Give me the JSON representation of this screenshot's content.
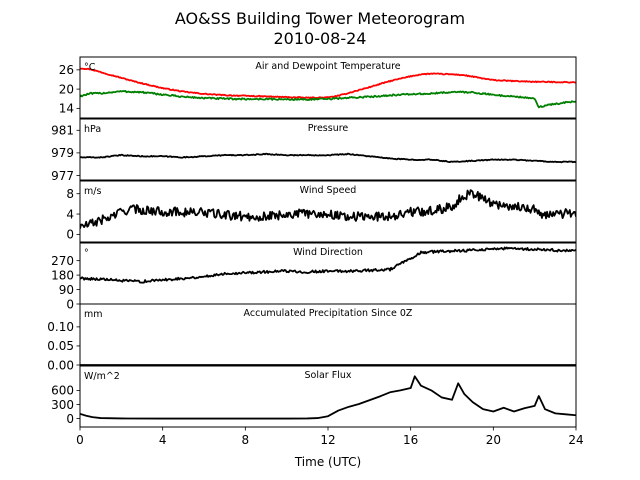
{
  "title_line1": "AO&SS Building Tower Meteorogram",
  "title_line2": "2010-08-24",
  "xlabel": "Time (UTC)",
  "colors": {
    "temperature": "#ff0000",
    "dewpoint": "#008000",
    "default": "#000000"
  },
  "chart_data": {
    "type": "line",
    "x_range": [
      0,
      24
    ],
    "x_ticks": [
      0,
      4,
      8,
      12,
      16,
      20,
      24
    ],
    "x_tick_labels": [
      "0",
      "4",
      "8",
      "12",
      "16",
      "20",
      "24"
    ],
    "panels": [
      {
        "title": "Air and Dewpoint Temperature",
        "unit": "°C",
        "ylim": [
          11,
          30
        ],
        "yticks": [
          14,
          20,
          26
        ],
        "series": [
          {
            "color_key": "temperature",
            "x": [
              0,
              0.5,
              1,
              1.5,
              2,
              2.5,
              3,
              4,
              5,
              6,
              7,
              8,
              9,
              10,
              11,
              12,
              12.5,
              13,
              14,
              15,
              16,
              16.5,
              17,
              17.5,
              18,
              18.5,
              19,
              19.5,
              20,
              21,
              22,
              23,
              24
            ],
            "y": [
              26.5,
              26.2,
              25.3,
              24.4,
              23.5,
              22.6,
              21.8,
              20.3,
              19.2,
              18.5,
              18.1,
              17.9,
              17.7,
              17.5,
              17.3,
              17.4,
              17.9,
              18.8,
              20.6,
              22.5,
              24.0,
              24.6,
              24.8,
              24.7,
              24.6,
              24.4,
              23.9,
              23.3,
              22.8,
              22.5,
              22.3,
              22.2,
              22.1
            ]
          },
          {
            "color_key": "dewpoint",
            "x": [
              0,
              0.5,
              1,
              1.5,
              2,
              3,
              4,
              5,
              6,
              7,
              8,
              9,
              10,
              11,
              12,
              13,
              14,
              15,
              16,
              17,
              18,
              19,
              20,
              21,
              21.5,
              22,
              22.2,
              22.5,
              23,
              24
            ],
            "y": [
              17.8,
              18.6,
              18.7,
              19.0,
              19.3,
              19.0,
              18.3,
              17.6,
              17.2,
              17.0,
              16.9,
              16.9,
              16.8,
              16.8,
              16.9,
              17.3,
              17.6,
              18.1,
              18.4,
              18.6,
              19.1,
              19.0,
              18.2,
              17.7,
              17.4,
              16.9,
              14.4,
              14.9,
              15.4,
              16.2
            ]
          }
        ]
      },
      {
        "title": "Pressure",
        "unit": "hPa",
        "ylim": [
          976.6,
          982.0
        ],
        "yticks": [
          977,
          979,
          981
        ],
        "series": [
          {
            "color_key": "default",
            "x": [
              0,
              1,
              2,
              3,
              4,
              5,
              6,
              7,
              8,
              9,
              10,
              11,
              12,
              13,
              14,
              15,
              16,
              17,
              18,
              19,
              20,
              21,
              22,
              23,
              24
            ],
            "y": [
              978.6,
              978.6,
              978.8,
              978.7,
              978.7,
              978.6,
              978.7,
              978.8,
              978.8,
              978.9,
              978.8,
              978.8,
              978.8,
              978.9,
              978.7,
              978.5,
              978.4,
              978.4,
              978.2,
              978.3,
              978.4,
              978.4,
              978.3,
              978.2,
              978.2
            ]
          }
        ]
      },
      {
        "title": "Wind Speed",
        "unit": "m/s",
        "ylim": [
          -1.5,
          10.5
        ],
        "yticks": [
          0,
          4,
          8
        ],
        "series": [
          {
            "color_key": "default",
            "x": [
              0,
              0.5,
              1,
              1.5,
              2,
              2.5,
              3,
              4,
              5,
              6,
              7,
              8,
              9,
              10,
              11,
              12,
              13,
              14,
              15,
              16,
              17,
              18,
              18.5,
              19,
              19.5,
              20,
              21,
              22,
              22.5,
              23,
              24
            ],
            "y": [
              1.5,
              2.0,
              2.8,
              3.4,
              4.5,
              5.0,
              4.8,
              4.5,
              4.4,
              4.3,
              3.8,
              3.5,
              3.5,
              4.0,
              4.1,
              4.0,
              3.5,
              3.5,
              3.6,
              4.4,
              4.6,
              5.5,
              7.5,
              8.2,
              7.0,
              6.0,
              5.5,
              5.0,
              3.6,
              4.0,
              4.2
            ]
          }
        ]
      },
      {
        "title": "Wind Direction",
        "unit": "°",
        "ylim": [
          0,
          380
        ],
        "yticks": [
          0,
          90,
          180,
          270
        ],
        "series": [
          {
            "color_key": "default",
            "x": [
              0,
              1,
              2,
              3,
              4,
              5,
              6,
              7,
              8,
              9,
              10,
              11,
              12,
              13,
              14,
              15,
              15.5,
              16,
              16.5,
              17,
              18,
              19,
              20,
              21,
              22,
              23,
              24
            ],
            "y": [
              160,
              155,
              145,
              140,
              150,
              160,
              170,
              190,
              195,
              200,
              205,
              200,
              205,
              205,
              210,
              215,
              250,
              280,
              320,
              325,
              330,
              335,
              345,
              345,
              340,
              335,
              330
            ]
          }
        ]
      },
      {
        "title": "Accumulated Precipitation Since 0Z",
        "unit": "mm",
        "ylim": [
          0.0,
          0.16
        ],
        "yticks": [
          0.0,
          0.05,
          0.1
        ],
        "ytick_labels": [
          "0.00",
          "0.05",
          "0.10"
        ],
        "series": [
          {
            "color_key": "default",
            "x": [
              0,
              24
            ],
            "y": [
              0.0,
              0.0
            ]
          }
        ]
      },
      {
        "title": "Solar Flux",
        "unit": "W/m^2",
        "ylim": [
          -180,
          1120
        ],
        "yticks": [
          0,
          300,
          600
        ],
        "series": [
          {
            "color_key": "default",
            "x": [
              0,
              0.3,
              0.6,
              1,
              2,
              4,
              6,
              8,
              10,
              11,
              11.5,
              12,
              12.5,
              13,
              13.5,
              14,
              14.5,
              15,
              15.5,
              16,
              16.2,
              16.5,
              17,
              17.5,
              18,
              18.3,
              18.6,
              19,
              19.5,
              20,
              20.5,
              21,
              21.5,
              22,
              22.2,
              22.5,
              23,
              23.5,
              24
            ],
            "y": [
              100,
              60,
              30,
              10,
              2,
              0,
              0,
              0,
              0,
              2,
              10,
              50,
              170,
              250,
              310,
              390,
              470,
              560,
              600,
              650,
              900,
              700,
              600,
              450,
              400,
              750,
              520,
              350,
              200,
              150,
              230,
              150,
              220,
              270,
              480,
              200,
              110,
              90,
              70
            ]
          }
        ]
      }
    ]
  }
}
